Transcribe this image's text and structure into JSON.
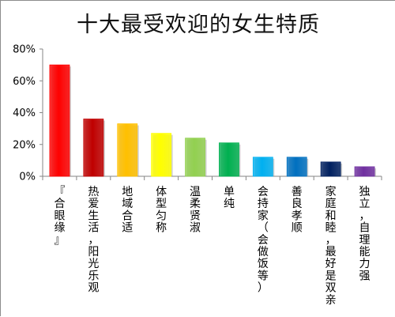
{
  "chart_data": {
    "type": "bar",
    "title": "十大最受欢迎的女生特质",
    "xlabel": "",
    "ylabel": "",
    "ylim": [
      0,
      80
    ],
    "y_tick_format": "percent",
    "y_ticks": [
      "0%",
      "20%",
      "40%",
      "60%",
      "80%"
    ],
    "grid": false,
    "legend": "none",
    "categories": [
      "『合眼缘』",
      "热爱生活，阳光乐观",
      "地域合适",
      "体型匀称",
      "温柔贤淑",
      "单纯",
      "会持家（会做饭等）",
      "善良孝顺",
      "家庭和睦，最好是双亲",
      "独立，自理能力强"
    ],
    "values": [
      70,
      36,
      33,
      27,
      24,
      21,
      12,
      12,
      9,
      6
    ],
    "colors": [
      "#ff0000",
      "#c00000",
      "#ffc000",
      "#ffff00",
      "#92d050",
      "#00b050",
      "#00b0f0",
      "#0070c0",
      "#002060",
      "#7030a0"
    ]
  }
}
